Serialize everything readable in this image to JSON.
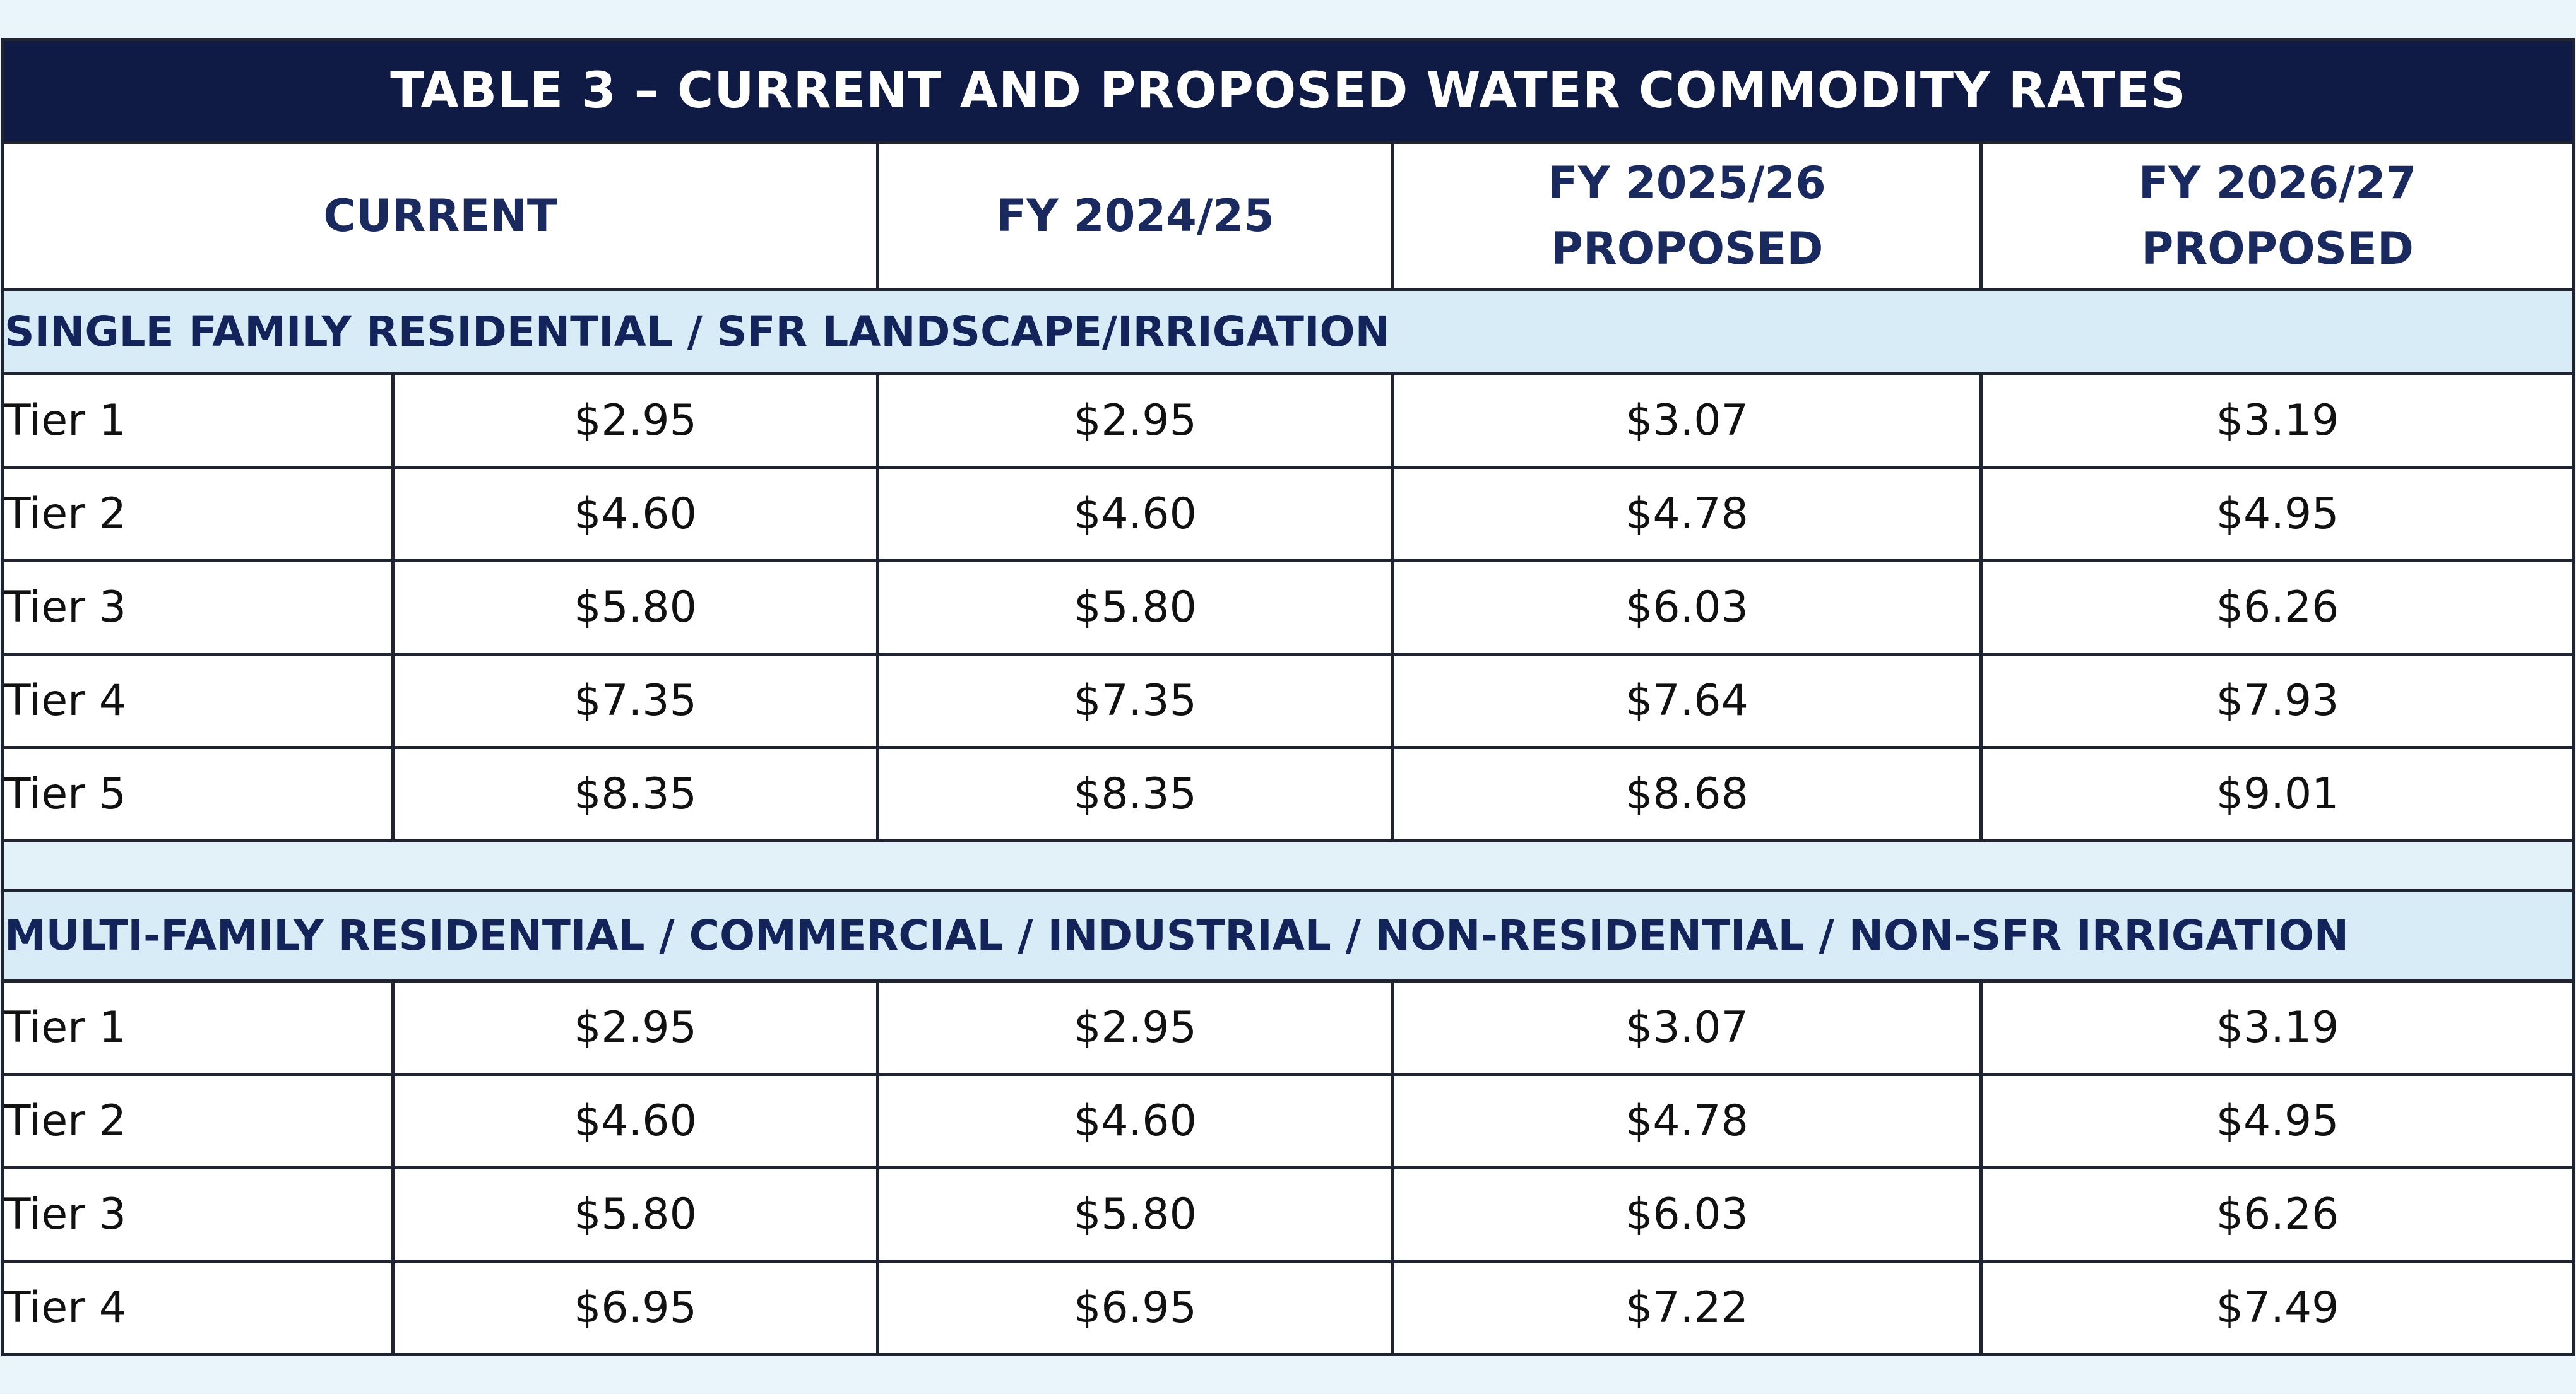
{
  "table": {
    "title": "TABLE 3 – CURRENT AND PROPOSED WATER COMMODITY RATES",
    "headers": {
      "current": "CURRENT",
      "fy2024": "FY 2024/25",
      "fy2025_line1": "FY 2025/26",
      "fy2025_line2": "PROPOSED",
      "fy2026_line1": "FY 2026/27",
      "fy2026_line2": "PROPOSED"
    },
    "sections": [
      {
        "title": "SINGLE FAMILY RESIDENTIAL / SFR LANDSCAPE/IRRIGATION",
        "rows": [
          {
            "tier": "Tier 1",
            "current": "$2.95",
            "fy2024": "$2.95",
            "fy2025": "$3.07",
            "fy2026": "$3.19"
          },
          {
            "tier": "Tier 2",
            "current": "$4.60",
            "fy2024": "$4.60",
            "fy2025": "$4.78",
            "fy2026": "$4.95"
          },
          {
            "tier": "Tier 3",
            "current": "$5.80",
            "fy2024": "$5.80",
            "fy2025": "$6.03",
            "fy2026": "$6.26"
          },
          {
            "tier": "Tier 4",
            "current": "$7.35",
            "fy2024": "$7.35",
            "fy2025": "$7.64",
            "fy2026": "$7.93"
          },
          {
            "tier": "Tier 5",
            "current": "$8.35",
            "fy2024": "$8.35",
            "fy2025": "$8.68",
            "fy2026": "$9.01"
          }
        ]
      },
      {
        "title": "MULTI-FAMILY RESIDENTIAL / COMMERCIAL / INDUSTRIAL / NON-RESIDENTIAL / NON-SFR IRRIGATION",
        "rows": [
          {
            "tier": "Tier 1",
            "current": "$2.95",
            "fy2024": "$2.95",
            "fy2025": "$3.07",
            "fy2026": "$3.19"
          },
          {
            "tier": "Tier 2",
            "current": "$4.60",
            "fy2024": "$4.60",
            "fy2025": "$4.78",
            "fy2026": "$4.95"
          },
          {
            "tier": "Tier 3",
            "current": "$5.80",
            "fy2024": "$5.80",
            "fy2025": "$6.03",
            "fy2026": "$6.26"
          },
          {
            "tier": "Tier 4",
            "current": "$6.95",
            "fy2024": "$6.95",
            "fy2025": "$7.22",
            "fy2026": "$7.49"
          }
        ]
      }
    ]
  }
}
